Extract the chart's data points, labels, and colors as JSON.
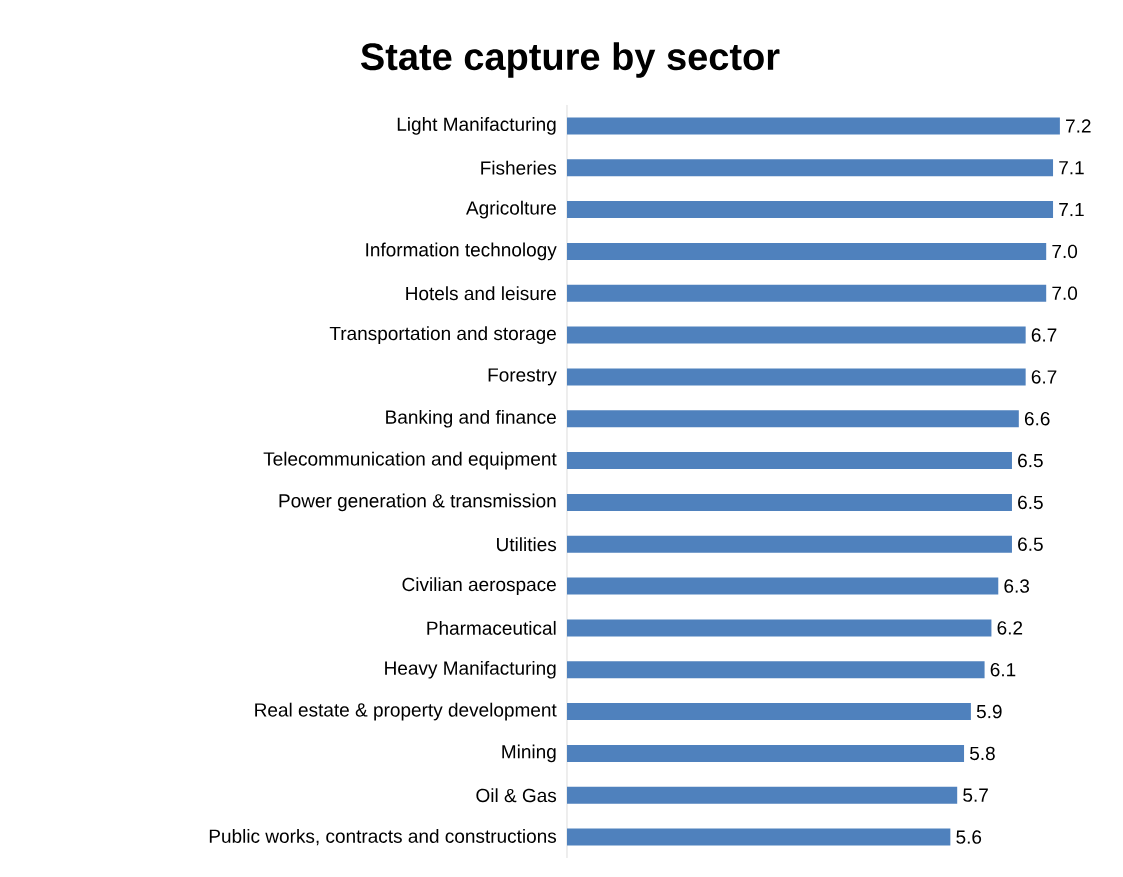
{
  "chart_data": {
    "type": "bar",
    "orientation": "horizontal",
    "title": "State capture by sector",
    "categories": [
      "Light Manifacturing",
      "Fisheries",
      "Agricolture",
      "Information technology",
      "Hotels and leisure",
      "Transportation and storage",
      "Forestry",
      "Banking and finance",
      "Telecommunication and equipment",
      "Power generation & transmission",
      "Utilities",
      "Civilian aerospace",
      "Pharmaceutical",
      "Heavy Manifacturing",
      "Real estate & property development",
      "Mining",
      "Oil & Gas",
      "Public works, contracts and constructions"
    ],
    "values": [
      7.2,
      7.1,
      7.1,
      7.0,
      7.0,
      6.7,
      6.7,
      6.6,
      6.5,
      6.5,
      6.5,
      6.3,
      6.2,
      6.1,
      5.9,
      5.8,
      5.7,
      5.6
    ],
    "value_labels": [
      "7.2",
      "7.1",
      "7.1",
      "7.0",
      "7.0",
      "6.7",
      "6.7",
      "6.6",
      "6.5",
      "6.5",
      "6.5",
      "6.3",
      "6.2",
      "6.1",
      "5.9",
      "5.8",
      "5.7",
      "5.6"
    ],
    "color": "#4f81bd"
  }
}
